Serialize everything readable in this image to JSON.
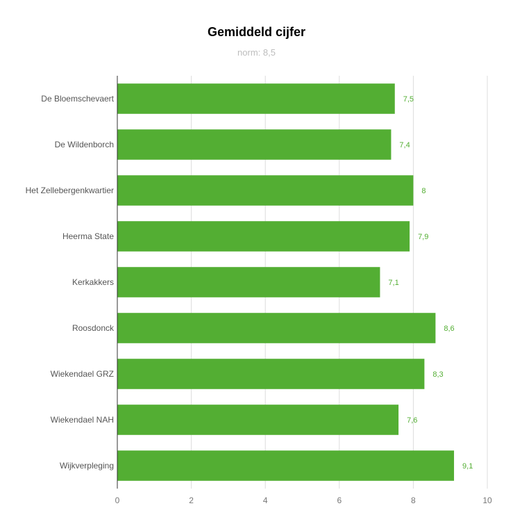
{
  "chart_data": {
    "type": "bar",
    "orientation": "horizontal",
    "title": "Gemiddeld cijfer",
    "subtitle": "norm: 8,5",
    "categories": [
      "De Bloemschevaert",
      "De Wildenborch",
      "Het Zellebergenkwartier",
      "Heerma State",
      "Kerkakkers",
      "Roosdonck",
      "Wiekendael GRZ",
      "Wiekendael NAH",
      "Wijkverpleging"
    ],
    "values": [
      7.5,
      7.4,
      8,
      7.9,
      7.1,
      8.6,
      8.3,
      7.6,
      9.1
    ],
    "value_labels": [
      "7,5",
      "7,4",
      "8",
      "7,9",
      "7,1",
      "8,6",
      "8,3",
      "7,6",
      "9,1"
    ],
    "xlim": [
      0,
      10
    ],
    "xticks": [
      "0",
      "2",
      "4",
      "6",
      "8",
      "10"
    ],
    "xlabel": "",
    "ylabel": "",
    "grid": true,
    "legend": "none",
    "bar_color": "#53ae33",
    "label_color": "#53ae33"
  }
}
